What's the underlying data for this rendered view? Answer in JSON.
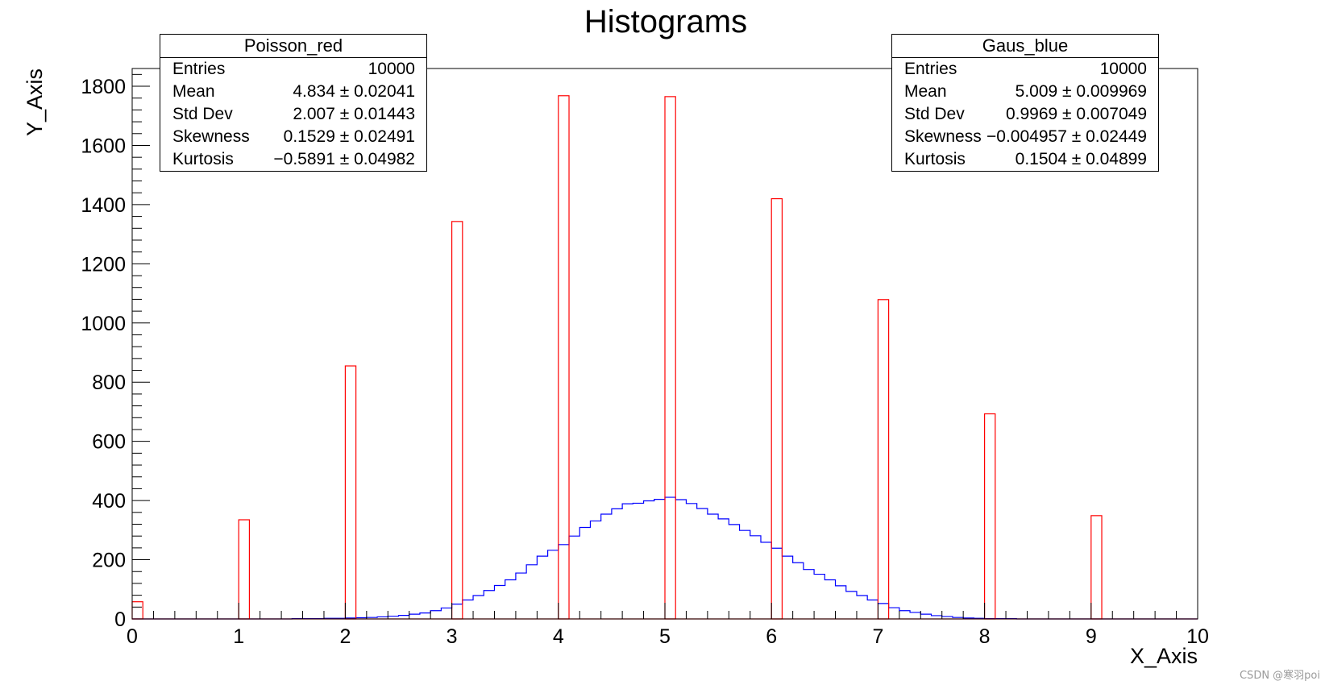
{
  "chart_data": {
    "type": "bar",
    "title": "Histograms",
    "xlabel": "X_Axis",
    "ylabel": "Y_Axis",
    "xlim": [
      0,
      10
    ],
    "ylim": [
      0,
      1860
    ],
    "x_ticks": [
      "0",
      "1",
      "2",
      "3",
      "4",
      "5",
      "6",
      "7",
      "8",
      "9",
      "10"
    ],
    "y_ticks": [
      "0",
      "200",
      "400",
      "600",
      "800",
      "1000",
      "1200",
      "1400",
      "1600",
      "1800"
    ],
    "series": [
      {
        "name": "Poisson_red",
        "color": "#ff0000",
        "bin_width": 0.1,
        "bins": [
          {
            "x": 0,
            "y": 58
          },
          {
            "x": 1,
            "y": 335
          },
          {
            "x": 2,
            "y": 855
          },
          {
            "x": 3,
            "y": 1343
          },
          {
            "x": 4,
            "y": 1768
          },
          {
            "x": 5,
            "y": 1765
          },
          {
            "x": 6,
            "y": 1420
          },
          {
            "x": 7,
            "y": 1079
          },
          {
            "x": 8,
            "y": 693
          },
          {
            "x": 9,
            "y": 349
          },
          {
            "x": 10,
            "y": 0
          }
        ]
      },
      {
        "name": "Gaus_blue",
        "color": "#0000ff",
        "bin_width": 0.1,
        "x_start": 0,
        "values": [
          0,
          0,
          0,
          0,
          0,
          0,
          0,
          0,
          0,
          0,
          0,
          0,
          0,
          0,
          0,
          1,
          1,
          1,
          2,
          2,
          3,
          4,
          5,
          7,
          9,
          12,
          16,
          20,
          28,
          37,
          50,
          64,
          79,
          96,
          113,
          132,
          155,
          183,
          212,
          232,
          251,
          280,
          309,
          331,
          354,
          372,
          389,
          391,
          399,
          404,
          411,
          403,
          390,
          373,
          354,
          338,
          319,
          299,
          281,
          259,
          239,
          212,
          190,
          167,
          151,
          132,
          112,
          93,
          79,
          64,
          52,
          38,
          28,
          22,
          16,
          11,
          8,
          5,
          3,
          2,
          1,
          1,
          1,
          0,
          0,
          0,
          0,
          0,
          0,
          0,
          0,
          0,
          0,
          0,
          0,
          0,
          0,
          0,
          0,
          0
        ]
      }
    ]
  },
  "stats": {
    "poisson": {
      "title": "Poisson_red",
      "rows": [
        {
          "label": "Entries",
          "value": "10000"
        },
        {
          "label": "Mean",
          "value": "4.834 ± 0.02041"
        },
        {
          "label": "Std Dev",
          "value": "2.007 ± 0.01443"
        },
        {
          "label": "Skewness",
          "value": "0.1529 ± 0.02491"
        },
        {
          "label": "Kurtosis",
          "value": "−0.5891 ± 0.04982"
        }
      ]
    },
    "gaus": {
      "title": "Gaus_blue",
      "rows": [
        {
          "label": "Entries",
          "value": "10000"
        },
        {
          "label": "Mean",
          "value": "5.009 ± 0.009969"
        },
        {
          "label": "Std Dev",
          "value": "0.9969 ± 0.007049"
        },
        {
          "label": "Skewness",
          "value": "−0.004957 ± 0.02449"
        },
        {
          "label": "Kurtosis",
          "value": "0.1504 ± 0.04899"
        }
      ]
    }
  },
  "watermark": "CSDN @寒羽poi"
}
